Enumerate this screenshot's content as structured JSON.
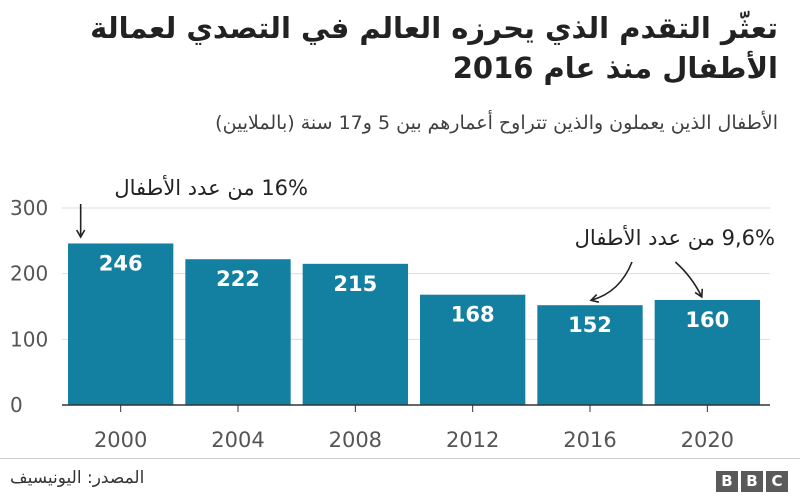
{
  "chart_data": {
    "type": "bar",
    "title": "تعثّر التقدم الذي يحرزه العالم في التصدي لعمالة الأطفال منذ عام 2016",
    "subtitle": "الأطفال الذين يعملون والذين تتراوح أعمارهم بين 5 و17 سنة (بالملايين)",
    "categories": [
      "2000",
      "2004",
      "2008",
      "2012",
      "2016",
      "2020"
    ],
    "values": [
      246,
      222,
      215,
      168,
      152,
      160
    ],
    "value_labels": [
      "246",
      "222",
      "215",
      "168",
      "152",
      "160"
    ],
    "ylim": [
      0,
      300
    ],
    "yticks": [
      0,
      100,
      200,
      300
    ],
    "grid": true,
    "bar_color": "#1380a1",
    "annotations": [
      {
        "text": "16% من عدد الأطفال",
        "target": "2000"
      },
      {
        "text": "9,6% من عدد الأطفال",
        "targets": [
          "2016",
          "2020"
        ]
      }
    ]
  },
  "footer": {
    "source": "المصدر: اليونيسيف",
    "logo_letters": [
      "B",
      "B",
      "C"
    ]
  }
}
